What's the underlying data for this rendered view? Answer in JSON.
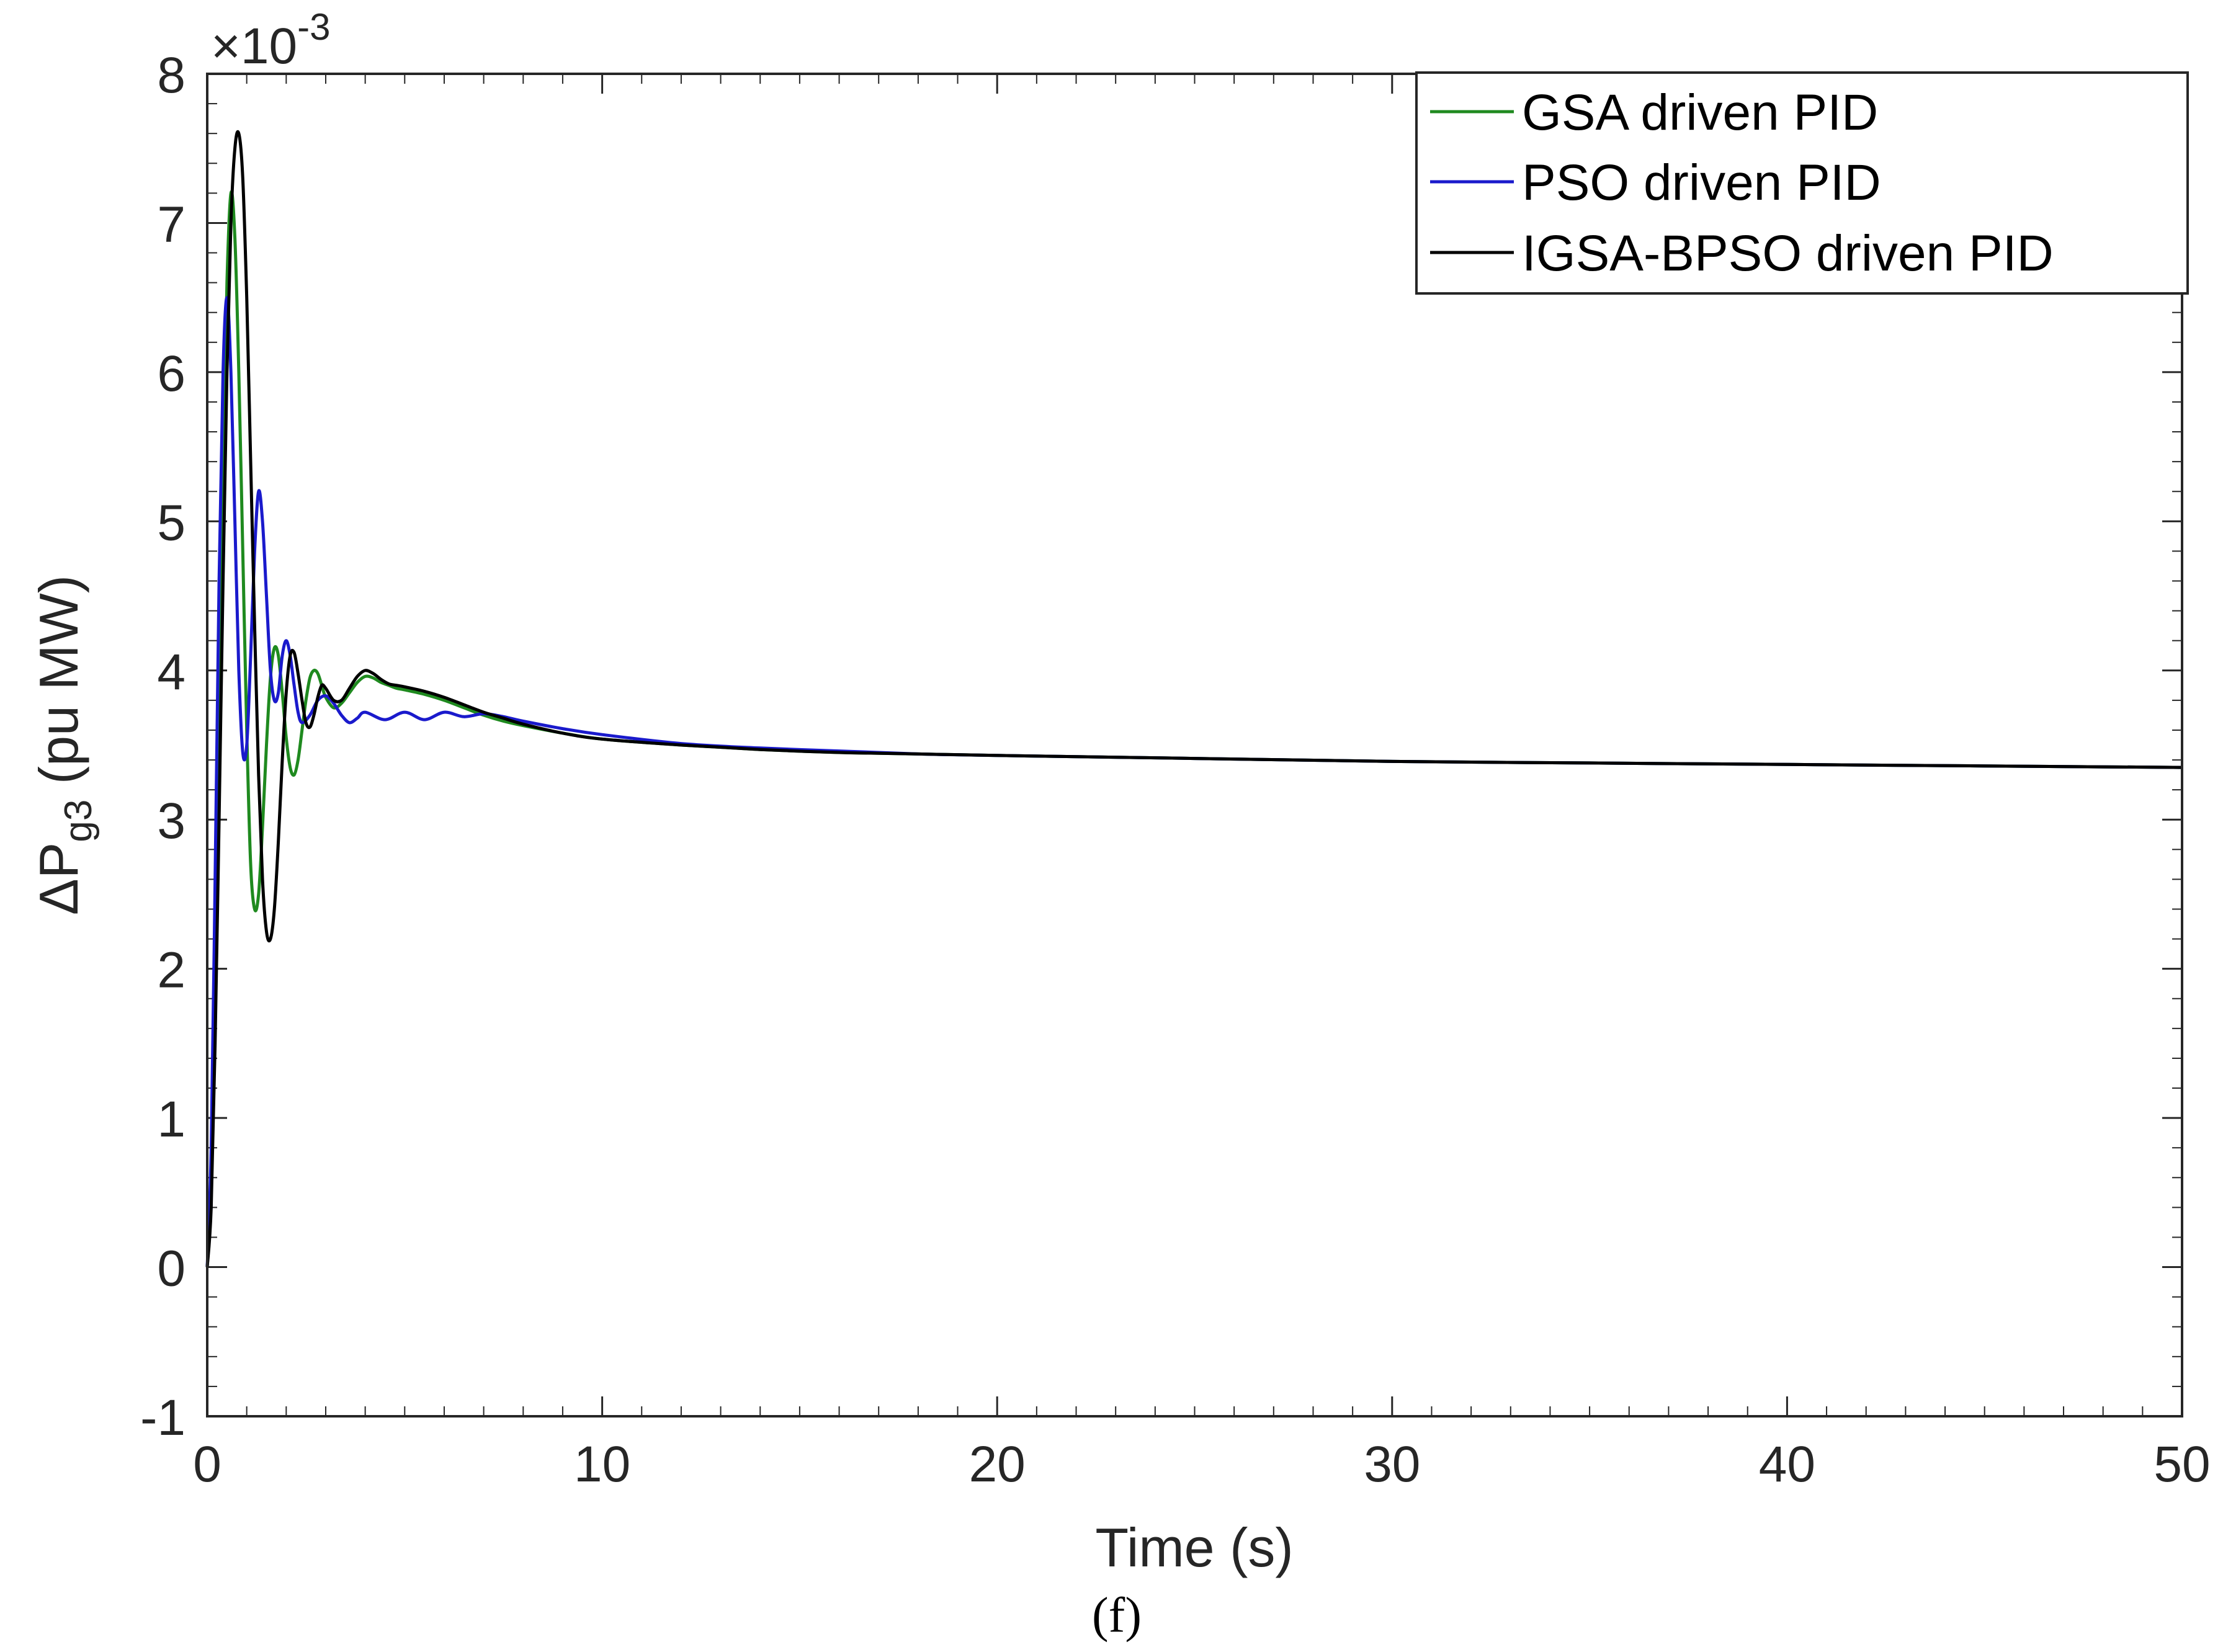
{
  "chart_data": {
    "type": "line",
    "title": "",
    "xlabel": "Time (s)",
    "ylabel_main": "ΔP",
    "ylabel_sub": "g3",
    "ylabel_unit": " (pu MW)",
    "exponent_base": "×10",
    "exponent_power": "-3",
    "caption": "(f)",
    "xlim": [
      0,
      50
    ],
    "ylim": [
      -1,
      8
    ],
    "xticks": [
      0,
      10,
      20,
      30,
      40,
      50
    ],
    "yticks": [
      -1,
      0,
      1,
      2,
      3,
      4,
      5,
      6,
      7,
      8
    ],
    "grid": false,
    "legend_position": "top-right",
    "series": [
      {
        "name": "GSA driven PID",
        "color": "#1f8a1f",
        "x": [
          0,
          0.1,
          0.2,
          0.3,
          0.4,
          0.5,
          0.6,
          0.7,
          0.8,
          0.9,
          1.0,
          1.1,
          1.2,
          1.3,
          1.4,
          1.5,
          1.6,
          1.7,
          1.8,
          1.9,
          2.0,
          2.1,
          2.2,
          2.3,
          2.4,
          2.5,
          2.6,
          2.7,
          2.8,
          2.9,
          3.0,
          3.2,
          3.4,
          3.6,
          3.8,
          4.0,
          4.2,
          4.4,
          4.6,
          4.8,
          5.0,
          5.5,
          6.0,
          6.5,
          7.0,
          7.5,
          8.0,
          9.0,
          10,
          12,
          14,
          16,
          18,
          20,
          25,
          30,
          35,
          40,
          45,
          50
        ],
        "y": [
          0,
          0.5,
          1.8,
          3.6,
          5.3,
          6.6,
          7.2,
          6.9,
          6.0,
          4.8,
          3.6,
          2.7,
          2.4,
          2.5,
          2.95,
          3.5,
          3.95,
          4.15,
          4.1,
          3.85,
          3.55,
          3.35,
          3.3,
          3.4,
          3.6,
          3.8,
          3.95,
          4.0,
          3.98,
          3.9,
          3.82,
          3.75,
          3.78,
          3.85,
          3.92,
          3.96,
          3.95,
          3.92,
          3.9,
          3.88,
          3.87,
          3.84,
          3.8,
          3.75,
          3.7,
          3.66,
          3.63,
          3.58,
          3.54,
          3.5,
          3.47,
          3.45,
          3.44,
          3.43,
          3.41,
          3.39,
          3.38,
          3.37,
          3.36,
          3.35
        ]
      },
      {
        "name": "PSO driven PID",
        "color": "#1a1acc",
        "x": [
          0,
          0.1,
          0.2,
          0.3,
          0.4,
          0.5,
          0.6,
          0.7,
          0.8,
          0.9,
          1.0,
          1.1,
          1.2,
          1.3,
          1.4,
          1.5,
          1.6,
          1.7,
          1.8,
          1.9,
          2.0,
          2.1,
          2.2,
          2.3,
          2.4,
          2.6,
          2.8,
          3.0,
          3.2,
          3.4,
          3.6,
          3.8,
          4.0,
          4.5,
          5.0,
          5.5,
          6.0,
          6.5,
          7.0,
          7.5,
          8.0,
          9.0,
          10,
          12,
          14,
          16,
          18,
          20,
          25,
          30,
          35,
          40,
          45,
          50
        ],
        "y": [
          0,
          0.8,
          2.6,
          4.6,
          6.0,
          6.5,
          6.0,
          5.0,
          4.0,
          3.45,
          3.5,
          4.1,
          4.8,
          5.2,
          5.0,
          4.5,
          4.0,
          3.8,
          3.85,
          4.1,
          4.2,
          4.1,
          3.9,
          3.72,
          3.65,
          3.7,
          3.8,
          3.83,
          3.78,
          3.7,
          3.65,
          3.68,
          3.72,
          3.67,
          3.72,
          3.67,
          3.72,
          3.69,
          3.71,
          3.69,
          3.66,
          3.61,
          3.57,
          3.51,
          3.48,
          3.46,
          3.44,
          3.43,
          3.41,
          3.39,
          3.38,
          3.37,
          3.36,
          3.35
        ]
      },
      {
        "name": "IGSA-BPSO driven PID",
        "color": "#000000",
        "x": [
          0,
          0.1,
          0.2,
          0.3,
          0.4,
          0.5,
          0.6,
          0.7,
          0.8,
          0.9,
          1.0,
          1.1,
          1.2,
          1.3,
          1.4,
          1.5,
          1.6,
          1.7,
          1.8,
          1.9,
          2.0,
          2.1,
          2.2,
          2.3,
          2.4,
          2.5,
          2.6,
          2.7,
          2.8,
          2.9,
          3.0,
          3.2,
          3.4,
          3.6,
          3.8,
          4.0,
          4.2,
          4.4,
          4.6,
          4.8,
          5.0,
          5.5,
          6.0,
          6.5,
          7.0,
          7.5,
          8.0,
          9.0,
          10,
          12,
          14,
          16,
          18,
          20,
          25,
          30,
          35,
          40,
          45,
          50
        ],
        "y": [
          0,
          0.4,
          1.5,
          3.0,
          4.6,
          6.0,
          7.0,
          7.5,
          7.6,
          7.3,
          6.5,
          5.4,
          4.3,
          3.3,
          2.6,
          2.25,
          2.2,
          2.4,
          2.85,
          3.4,
          3.85,
          4.1,
          4.12,
          3.98,
          3.8,
          3.65,
          3.62,
          3.7,
          3.82,
          3.9,
          3.88,
          3.8,
          3.8,
          3.88,
          3.96,
          4.0,
          3.98,
          3.94,
          3.91,
          3.9,
          3.89,
          3.86,
          3.82,
          3.77,
          3.72,
          3.68,
          3.64,
          3.58,
          3.54,
          3.5,
          3.47,
          3.45,
          3.44,
          3.43,
          3.41,
          3.39,
          3.38,
          3.37,
          3.36,
          3.35
        ]
      }
    ]
  }
}
